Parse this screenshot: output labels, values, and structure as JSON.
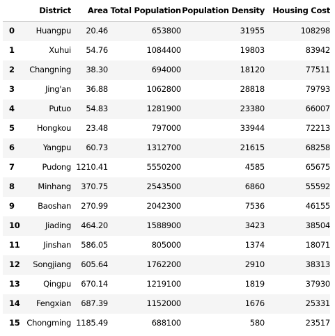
{
  "table": {
    "columns": [
      "District",
      "Area",
      "Total Population",
      "Population Density",
      "Housing Cost"
    ],
    "rows": [
      {
        "index": "0",
        "district": "Huangpu",
        "area": "20.46",
        "total_population": "653800",
        "population_density": "31955",
        "housing_cost": "108298"
      },
      {
        "index": "1",
        "district": "Xuhui",
        "area": "54.76",
        "total_population": "1084400",
        "population_density": "19803",
        "housing_cost": "83942"
      },
      {
        "index": "2",
        "district": "Changning",
        "area": "38.30",
        "total_population": "694000",
        "population_density": "18120",
        "housing_cost": "77511"
      },
      {
        "index": "3",
        "district": "Jing'an",
        "area": "36.88",
        "total_population": "1062800",
        "population_density": "28818",
        "housing_cost": "79793"
      },
      {
        "index": "4",
        "district": "Putuo",
        "area": "54.83",
        "total_population": "1281900",
        "population_density": "23380",
        "housing_cost": "66007"
      },
      {
        "index": "5",
        "district": "Hongkou",
        "area": "23.48",
        "total_population": "797000",
        "population_density": "33944",
        "housing_cost": "72213"
      },
      {
        "index": "6",
        "district": "Yangpu",
        "area": "60.73",
        "total_population": "1312700",
        "population_density": "21615",
        "housing_cost": "68258"
      },
      {
        "index": "7",
        "district": "Pudong",
        "area": "1210.41",
        "total_population": "5550200",
        "population_density": "4585",
        "housing_cost": "65675"
      },
      {
        "index": "8",
        "district": "Minhang",
        "area": "370.75",
        "total_population": "2543500",
        "population_density": "6860",
        "housing_cost": "55592"
      },
      {
        "index": "9",
        "district": "Baoshan",
        "area": "270.99",
        "total_population": "2042300",
        "population_density": "7536",
        "housing_cost": "46155"
      },
      {
        "index": "10",
        "district": "Jiading",
        "area": "464.20",
        "total_population": "1588900",
        "population_density": "3423",
        "housing_cost": "38504"
      },
      {
        "index": "11",
        "district": "Jinshan",
        "area": "586.05",
        "total_population": "805000",
        "population_density": "1374",
        "housing_cost": "18071"
      },
      {
        "index": "12",
        "district": "Songjiang",
        "area": "605.64",
        "total_population": "1762200",
        "population_density": "2910",
        "housing_cost": "38313"
      },
      {
        "index": "13",
        "district": "Qingpu",
        "area": "670.14",
        "total_population": "1219100",
        "population_density": "1819",
        "housing_cost": "37930"
      },
      {
        "index": "14",
        "district": "Fengxian",
        "area": "687.39",
        "total_population": "1152000",
        "population_density": "1676",
        "housing_cost": "25331"
      },
      {
        "index": "15",
        "district": "Chongming",
        "area": "1185.49",
        "total_population": "688100",
        "population_density": "580",
        "housing_cost": "23517"
      }
    ]
  }
}
